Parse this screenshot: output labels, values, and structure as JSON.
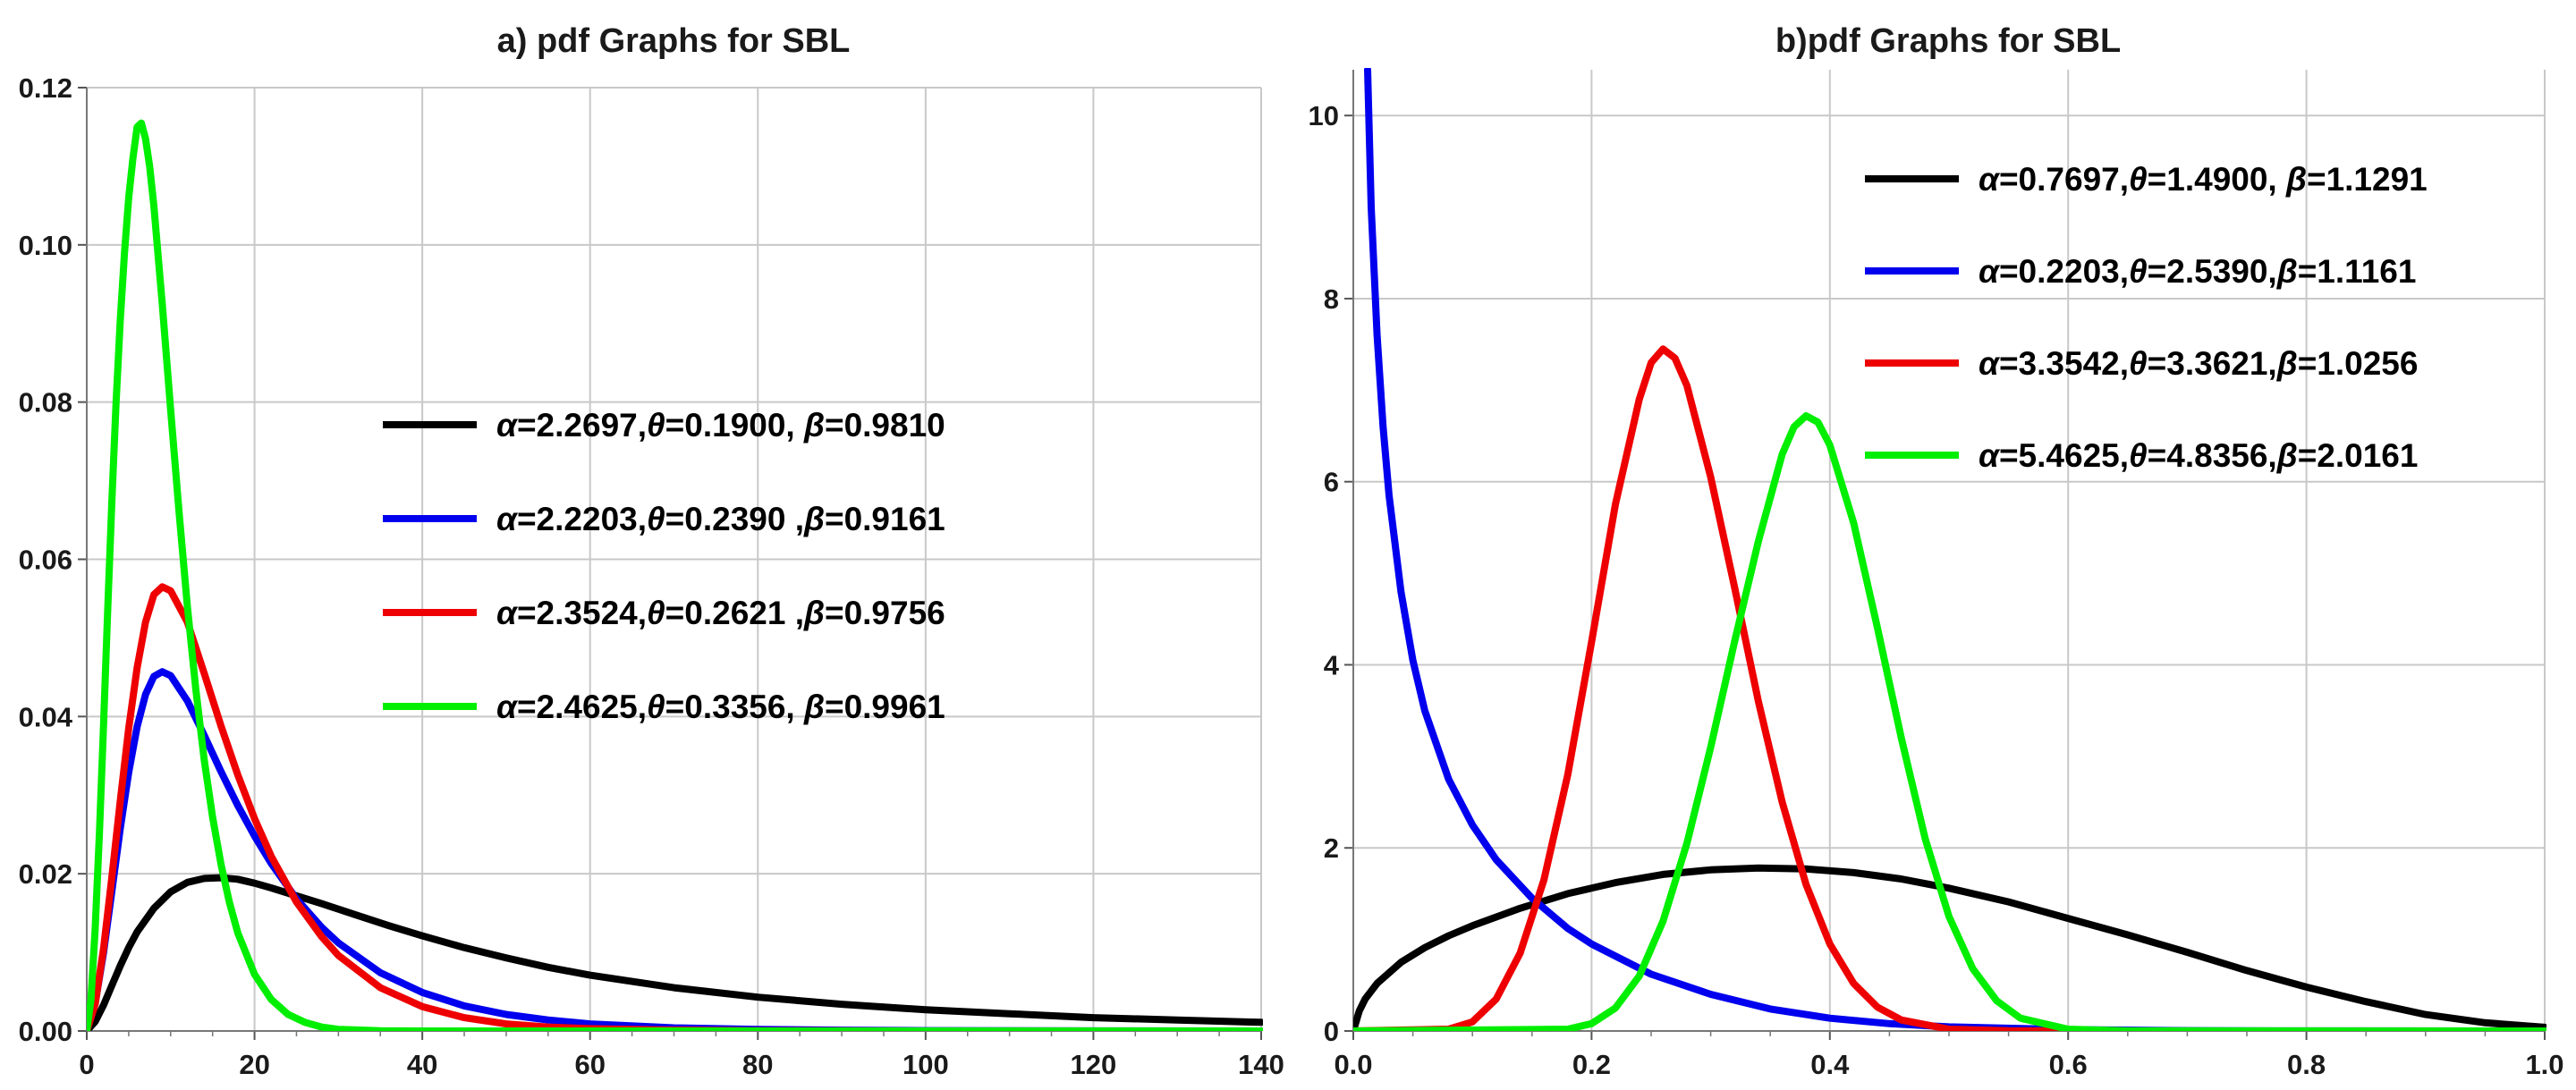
{
  "chart_data": [
    {
      "type": "line",
      "title": "a) pdf Graphs for SBL",
      "xlabel": "",
      "ylabel": "",
      "xlim": [
        0,
        140
      ],
      "ylim": [
        0,
        0.12
      ],
      "xticks": [
        "0",
        "20",
        "40",
        "60",
        "80",
        "100",
        "120",
        "140"
      ],
      "yticks": [
        "0.00",
        "0.02",
        "0.04",
        "0.06",
        "0.08",
        "0.10",
        "0.12"
      ],
      "grid": true,
      "legend_position": "center-right",
      "series": [
        {
          "name": "α=2.2697,θ=0.1900, β=0.9810",
          "legend": [
            {
              "t": "α",
              "g": true
            },
            {
              "t": "=2.2697,"
            },
            {
              "t": "θ",
              "g": true
            },
            {
              "t": "=0.1900, "
            },
            {
              "t": "β",
              "g": true
            },
            {
              "t": "=0.9810"
            }
          ],
          "color": "#000000",
          "x": [
            0,
            1,
            2,
            3,
            4,
            5,
            6,
            8,
            10,
            12,
            14,
            16,
            18,
            20,
            22,
            25,
            28,
            32,
            36,
            40,
            45,
            50,
            55,
            60,
            70,
            80,
            90,
            100,
            110,
            120,
            130,
            140
          ],
          "y": [
            0,
            0.0012,
            0.0033,
            0.0058,
            0.0083,
            0.0106,
            0.0126,
            0.0156,
            0.0177,
            0.0189,
            0.0194,
            0.0195,
            0.0193,
            0.0188,
            0.0182,
            0.0172,
            0.0162,
            0.0148,
            0.0134,
            0.0121,
            0.0106,
            0.0093,
            0.0081,
            0.0071,
            0.0055,
            0.0043,
            0.0034,
            0.0027,
            0.0022,
            0.0017,
            0.0014,
            0.0011
          ]
        },
        {
          "name": "α=2.2203,θ=0.2390 ,β=0.9161",
          "legend": [
            {
              "t": "α",
              "g": true
            },
            {
              "t": "=2.2203,"
            },
            {
              "t": "θ",
              "g": true
            },
            {
              "t": "=0.2390 ,"
            },
            {
              "t": "β",
              "g": true
            },
            {
              "t": "=0.9161"
            }
          ],
          "color": "#0000ee",
          "x": [
            0,
            1,
            2,
            3,
            4,
            5,
            6,
            7,
            8,
            9,
            10,
            12,
            14,
            16,
            18,
            20,
            22,
            25,
            28,
            30,
            35,
            40,
            45,
            50,
            55,
            60,
            70,
            80,
            90,
            100,
            120,
            140
          ],
          "y": [
            0,
            0.0035,
            0.01,
            0.0178,
            0.0258,
            0.0329,
            0.0387,
            0.0428,
            0.0451,
            0.0457,
            0.0452,
            0.042,
            0.0376,
            0.033,
            0.0287,
            0.0248,
            0.0213,
            0.0168,
            0.0132,
            0.0112,
            0.0074,
            0.0049,
            0.0032,
            0.0021,
            0.0014,
            0.0009,
            0.0004,
            0.0002,
            0.0001,
            5e-05,
            1e-05,
            0
          ]
        },
        {
          "name": "α=2.3524,θ=0.2621 ,β=0.9756",
          "legend": [
            {
              "t": "α",
              "g": true
            },
            {
              "t": "=2.3524,"
            },
            {
              "t": "θ",
              "g": true
            },
            {
              "t": "=0.2621 ,"
            },
            {
              "t": "β",
              "g": true
            },
            {
              "t": "=0.9756"
            }
          ],
          "color": "#ee0000",
          "x": [
            0,
            1,
            2,
            3,
            4,
            5,
            6,
            7,
            8,
            9,
            10,
            12,
            14,
            16,
            18,
            20,
            22,
            25,
            28,
            30,
            35,
            40,
            45,
            50,
            55,
            60,
            70,
            80,
            100,
            120,
            140
          ],
          "y": [
            0,
            0.0034,
            0.0105,
            0.0196,
            0.0293,
            0.0385,
            0.0462,
            0.052,
            0.0555,
            0.0565,
            0.056,
            0.052,
            0.0455,
            0.0388,
            0.0326,
            0.027,
            0.0222,
            0.0164,
            0.012,
            0.0096,
            0.0055,
            0.0031,
            0.0017,
            0.0009,
            0.0005,
            0.0003,
            0.0001,
            3e-05,
            0,
            0,
            0
          ]
        },
        {
          "name": "α=2.4625,θ=0.3356, β=0.9961",
          "legend": [
            {
              "t": "α",
              "g": true
            },
            {
              "t": "=2.4625,"
            },
            {
              "t": "θ",
              "g": true
            },
            {
              "t": "=0.3356, "
            },
            {
              "t": "β",
              "g": true
            },
            {
              "t": "=0.9961"
            }
          ],
          "color": "#00ee00",
          "x": [
            0,
            0.5,
            1,
            1.5,
            2,
            2.5,
            3,
            3.5,
            4,
            4.5,
            5,
            5.5,
            6,
            6.5,
            7,
            7.5,
            8,
            9,
            10,
            11,
            12,
            13,
            14,
            15,
            16,
            17,
            18,
            20,
            22,
            24,
            26,
            28,
            30,
            35,
            40,
            140
          ],
          "y": [
            0,
            0.004,
            0.013,
            0.025,
            0.039,
            0.0535,
            0.0675,
            0.08,
            0.0905,
            0.099,
            0.106,
            0.111,
            0.115,
            0.1155,
            0.1135,
            0.11,
            0.105,
            0.0925,
            0.079,
            0.066,
            0.054,
            0.0435,
            0.0345,
            0.0272,
            0.0212,
            0.0164,
            0.0125,
            0.0072,
            0.004,
            0.0021,
            0.0011,
            0.0005,
            0.0002,
            3e-05,
            0,
            0
          ]
        }
      ]
    },
    {
      "type": "line",
      "title": "b)pdf Graphs for SBL",
      "xlabel": "",
      "ylabel": "",
      "xlim": [
        0,
        1
      ],
      "ylim": [
        0,
        10.5
      ],
      "xticks": [
        "0.0",
        "0.2",
        "0.4",
        "0.6",
        "0.8",
        "1.0"
      ],
      "yticks": [
        "0",
        "2",
        "4",
        "6",
        "8",
        "10"
      ],
      "grid": true,
      "legend_position": "top-right",
      "series": [
        {
          "name": "α=0.7697,θ=1.4900, β=1.1291",
          "legend": [
            {
              "t": "α",
              "g": true
            },
            {
              "t": "=0.7697,"
            },
            {
              "t": "θ",
              "g": true
            },
            {
              "t": "=1.4900, "
            },
            {
              "t": "β",
              "g": true
            },
            {
              "t": "=1.1291"
            }
          ],
          "color": "#000000",
          "x": [
            0,
            0.005,
            0.01,
            0.02,
            0.04,
            0.06,
            0.08,
            0.1,
            0.14,
            0.18,
            0.22,
            0.26,
            0.3,
            0.34,
            0.38,
            0.42,
            0.46,
            0.5,
            0.55,
            0.6,
            0.65,
            0.7,
            0.75,
            0.8,
            0.85,
            0.9,
            0.95,
            1.0
          ],
          "y": [
            0,
            0.22,
            0.35,
            0.52,
            0.75,
            0.91,
            1.04,
            1.15,
            1.34,
            1.5,
            1.62,
            1.71,
            1.76,
            1.78,
            1.77,
            1.73,
            1.66,
            1.56,
            1.41,
            1.23,
            1.05,
            0.86,
            0.66,
            0.48,
            0.32,
            0.18,
            0.09,
            0.04
          ]
        },
        {
          "name": "α=0.2203,θ=2.5390,β=1.1161",
          "legend": [
            {
              "t": "α",
              "g": true
            },
            {
              "t": "=0.2203,"
            },
            {
              "t": "θ",
              "g": true
            },
            {
              "t": "=2.5390,"
            },
            {
              "t": "β",
              "g": true
            },
            {
              "t": "=1.1161"
            }
          ],
          "color": "#0000ee",
          "x": [
            0.012,
            0.015,
            0.02,
            0.025,
            0.03,
            0.04,
            0.05,
            0.06,
            0.08,
            0.1,
            0.12,
            0.15,
            0.18,
            0.2,
            0.25,
            0.3,
            0.35,
            0.4,
            0.45,
            0.5,
            0.6,
            0.7,
            0.8,
            1.0
          ],
          "y": [
            10.5,
            9.0,
            7.6,
            6.6,
            5.85,
            4.8,
            4.05,
            3.5,
            2.75,
            2.25,
            1.87,
            1.45,
            1.12,
            0.95,
            0.62,
            0.4,
            0.24,
            0.14,
            0.08,
            0.045,
            0.015,
            0.004,
            0.001,
            0
          ]
        },
        {
          "name": "α=3.3542,θ=3.3621,β=1.0256",
          "legend": [
            {
              "t": "α",
              "g": true
            },
            {
              "t": "=3.3542,"
            },
            {
              "t": "θ",
              "g": true
            },
            {
              "t": "=3.3621,"
            },
            {
              "t": "β",
              "g": true
            },
            {
              "t": "=1.0256"
            }
          ],
          "color": "#ee0000",
          "x": [
            0,
            0.08,
            0.1,
            0.12,
            0.14,
            0.16,
            0.18,
            0.2,
            0.22,
            0.24,
            0.25,
            0.26,
            0.27,
            0.28,
            0.3,
            0.32,
            0.34,
            0.36,
            0.38,
            0.4,
            0.42,
            0.44,
            0.46,
            0.5,
            0.55,
            0.6,
            1.0
          ],
          "y": [
            0,
            0.02,
            0.1,
            0.35,
            0.85,
            1.65,
            2.8,
            4.25,
            5.75,
            6.9,
            7.3,
            7.45,
            7.35,
            7.05,
            6.05,
            4.85,
            3.6,
            2.5,
            1.6,
            0.95,
            0.52,
            0.26,
            0.12,
            0.02,
            0.002,
            0,
            0
          ]
        },
        {
          "name": "α=5.4625,θ=4.8356,β=2.0161",
          "legend": [
            {
              "t": "α",
              "g": true
            },
            {
              "t": "=5.4625,"
            },
            {
              "t": "θ",
              "g": true
            },
            {
              "t": "=4.8356,"
            },
            {
              "t": "β",
              "g": true
            },
            {
              "t": "=2.0161"
            }
          ],
          "color": "#00ee00",
          "x": [
            0,
            0.18,
            0.2,
            0.22,
            0.24,
            0.26,
            0.28,
            0.3,
            0.32,
            0.34,
            0.36,
            0.37,
            0.38,
            0.39,
            0.4,
            0.42,
            0.44,
            0.46,
            0.48,
            0.5,
            0.52,
            0.54,
            0.56,
            0.6,
            0.65,
            1.0
          ],
          "y": [
            0,
            0.02,
            0.08,
            0.25,
            0.6,
            1.2,
            2.05,
            3.1,
            4.25,
            5.35,
            6.3,
            6.6,
            6.72,
            6.65,
            6.4,
            5.55,
            4.4,
            3.2,
            2.1,
            1.25,
            0.68,
            0.33,
            0.14,
            0.02,
            0.001,
            0
          ]
        }
      ]
    }
  ]
}
